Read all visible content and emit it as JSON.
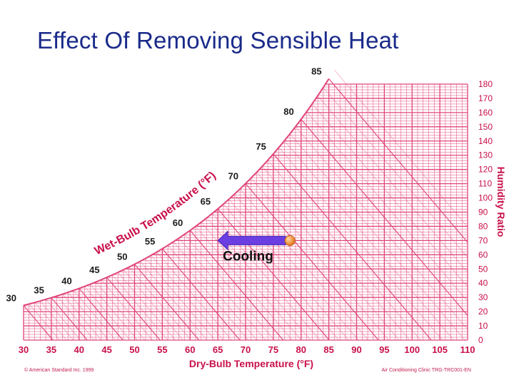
{
  "title": "Effect Of Removing Sensible Heat",
  "footer": {
    "left": "© American Standard Inc. 1999",
    "right": "Air Conditioning Clinic TRG-TRC001-EN"
  },
  "colors": {
    "grid": "#e0457a",
    "axis_text": "#c8104a",
    "wb_text": "#1a1a1a",
    "title": "#1a2a8a",
    "arrow": "#6a3ee0",
    "state_point": "#f08a2a"
  },
  "chart_data": {
    "type": "psychrometric",
    "xlabel": "Dry-Bulb Temperature (°F)",
    "ylabel": "Humidity Ratio",
    "saturation_label": "Wet-Bulb Temperature (°F)",
    "x_ticks": [
      30,
      35,
      40,
      45,
      50,
      55,
      60,
      65,
      70,
      75,
      80,
      85,
      90,
      95,
      100,
      105,
      110
    ],
    "xlim": [
      30,
      110
    ],
    "y_ticks": [
      0,
      10,
      20,
      30,
      40,
      50,
      60,
      70,
      80,
      90,
      100,
      110,
      120,
      130,
      140,
      150,
      160,
      170,
      180
    ],
    "ylim": [
      0,
      180
    ],
    "wet_bulb_labels": [
      30,
      35,
      40,
      45,
      50,
      55,
      60,
      65,
      70,
      75,
      80,
      85
    ],
    "process": {
      "label": "Cooling",
      "start": {
        "db": 78,
        "w": 70
      },
      "end": {
        "db": 65,
        "w": 70
      }
    }
  }
}
